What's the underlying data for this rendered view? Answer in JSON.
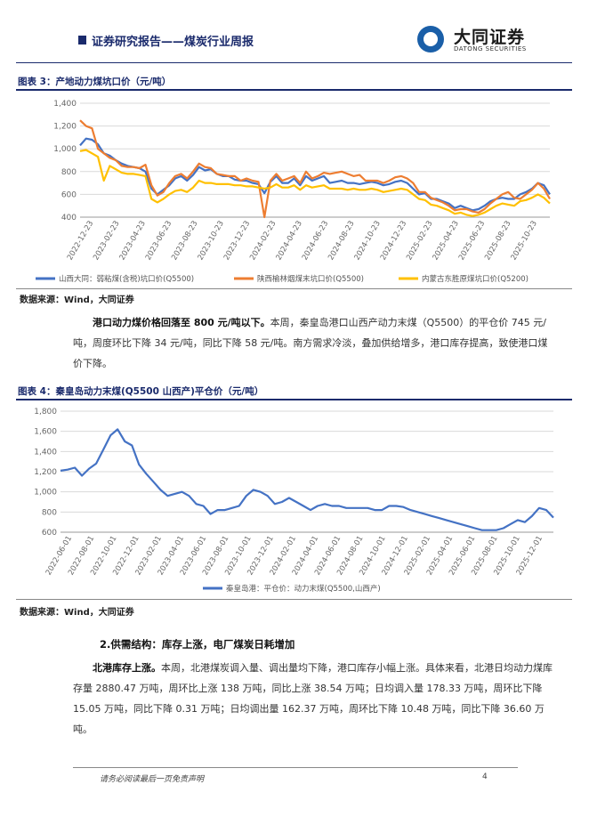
{
  "header": {
    "title": "证券研究报告——煤炭行业周报",
    "logo_cn": "大同证券",
    "logo_en": "DATONG SECURITIES"
  },
  "figure3": {
    "title": "图表 3：产地动力煤坑口价（元/吨）",
    "source": "数据来源：Wind，大同证券"
  },
  "paragraph1": {
    "lead": "港口动力煤价格回落至 800 元/吨以下。",
    "body": "本周，秦皇岛港口山西产动力末煤（Q5500）的平仓价 745 元/吨，周度环比下降 34 元/吨，同比下降 58 元/吨。南方需求冷淡，叠加供给增多，港口库存提高，致使港口煤价下降。"
  },
  "figure4": {
    "title": "图表 4：秦皇岛动力末煤(Q5500 山西产)平仓价（元/吨）",
    "source": "数据来源：Wind，大同证券"
  },
  "section2": {
    "title": "2.供需结构：库存上涨，电厂煤炭日耗增加"
  },
  "paragraph2": {
    "lead": "北港库存上涨。",
    "body": "本周，北港煤炭调入量、调出量均下降，港口库存小幅上涨。具体来看，北港日均动力煤库存量 2880.47 万吨，周环比上涨 138 万吨，同比上涨 38.54 万吨；日均调入量 178.33 万吨，周环比下降 15.05 万吨，同比下降 0.31 万吨；日均调出量 162.37 万吨，周环比下降 10.48 万吨，同比下降 36.60 万吨。"
  },
  "footer": {
    "disclaimer": "请务必阅读最后一页免责声明",
    "page": "4"
  },
  "chart_data": [
    {
      "type": "line",
      "title": "",
      "xlabel": "",
      "ylabel": "",
      "ylim": [
        400,
        1400
      ],
      "yticks": [
        400,
        600,
        800,
        1000,
        1200,
        1400
      ],
      "ytick_labels": [
        "400",
        "600",
        "800",
        "1,000",
        "1,200",
        "1,400"
      ],
      "xtick_labels": [
        "2022-12-23",
        "2023-02-23",
        "2023-04-23",
        "2023-06-23",
        "2023-08-23",
        "2023-10-23",
        "2023-12-23",
        "2024-02-23",
        "2024-04-23",
        "2024-06-23",
        "2024-08-23",
        "2024-10-23",
        "2024-12-23",
        "2025-02-23",
        "2025-04-23",
        "2025-06-23",
        "2025-08-23",
        "2025-10-23"
      ],
      "grid": "horizontal",
      "legend_position": "bottom",
      "series": [
        {
          "name": "山西大同：弱粘煤(含税)坑口价(Q5500)",
          "color": "#4472c4",
          "values": [
            1030,
            1090,
            1080,
            1040,
            960,
            940,
            900,
            870,
            850,
            840,
            830,
            800,
            650,
            600,
            640,
            680,
            740,
            760,
            720,
            770,
            840,
            810,
            820,
            780,
            760,
            760,
            730,
            720,
            720,
            700,
            690,
            610,
            710,
            760,
            700,
            700,
            740,
            680,
            760,
            720,
            740,
            760,
            700,
            710,
            720,
            700,
            700,
            690,
            700,
            710,
            700,
            680,
            690,
            710,
            720,
            700,
            650,
            600,
            610,
            560,
            560,
            540,
            520,
            480,
            500,
            480,
            460,
            470,
            500,
            540,
            560,
            570,
            560,
            560,
            600,
            620,
            650,
            700,
            680,
            600
          ]
        },
        {
          "name": "陕西榆林烟煤末坑口价(Q5500)",
          "color": "#ed7d31",
          "values": [
            1250,
            1200,
            1180,
            1000,
            960,
            920,
            900,
            850,
            840,
            840,
            830,
            860,
            680,
            590,
            620,
            700,
            760,
            780,
            740,
            800,
            870,
            840,
            830,
            780,
            770,
            760,
            760,
            720,
            740,
            720,
            710,
            400,
            720,
            780,
            720,
            740,
            760,
            700,
            800,
            740,
            760,
            790,
            780,
            790,
            800,
            780,
            760,
            770,
            720,
            720,
            720,
            700,
            720,
            750,
            760,
            740,
            700,
            620,
            620,
            570,
            550,
            530,
            500,
            460,
            470,
            470,
            450,
            440,
            470,
            520,
            560,
            600,
            620,
            570,
            560,
            600,
            640,
            700,
            650,
            560
          ]
        },
        {
          "name": "内蒙古东胜原煤坑口价(Q5200)",
          "color": "#ffc000",
          "values": [
            980,
            990,
            960,
            930,
            720,
            850,
            820,
            790,
            780,
            780,
            770,
            760,
            560,
            530,
            560,
            600,
            630,
            640,
            620,
            660,
            720,
            700,
            700,
            690,
            690,
            690,
            680,
            680,
            670,
            670,
            660,
            650,
            660,
            690,
            660,
            660,
            680,
            640,
            680,
            660,
            670,
            680,
            650,
            650,
            650,
            640,
            650,
            640,
            640,
            650,
            640,
            620,
            630,
            640,
            650,
            640,
            600,
            560,
            550,
            510,
            500,
            480,
            460,
            430,
            440,
            420,
            410,
            420,
            440,
            470,
            500,
            520,
            510,
            500,
            540,
            550,
            570,
            600,
            570,
            520
          ]
        }
      ]
    },
    {
      "type": "line",
      "title": "",
      "xlabel": "",
      "ylabel": "",
      "ylim": [
        600,
        1800
      ],
      "yticks": [
        600,
        800,
        1000,
        1200,
        1400,
        1600,
        1800
      ],
      "ytick_labels": [
        "600",
        "800",
        "1,000",
        "1,200",
        "1,400",
        "1,600",
        "1,800"
      ],
      "xtick_labels": [
        "2022-06-01",
        "2022-08-01",
        "2022-10-01",
        "2022-12-01",
        "2023-02-01",
        "2023-04-01",
        "2023-06-01",
        "2023-08-01",
        "2023-10-01",
        "2023-12-01",
        "2024-02-01",
        "2024-04-01",
        "2024-06-01",
        "2024-08-01",
        "2024-10-01",
        "2024-12-01",
        "2025-02-01",
        "2025-04-01",
        "2025-06-01",
        "2025-08-01",
        "2025-10-01",
        "2025-12-01"
      ],
      "grid": "horizontal",
      "legend_position": "bottom",
      "series": [
        {
          "name": "秦皇岛港：平仓价：动力末煤(Q5500,山西产)",
          "color": "#4472c4",
          "values": [
            1210,
            1220,
            1240,
            1160,
            1230,
            1280,
            1420,
            1560,
            1620,
            1500,
            1460,
            1270,
            1180,
            1100,
            1020,
            960,
            980,
            1000,
            960,
            880,
            860,
            780,
            820,
            820,
            840,
            860,
            960,
            1020,
            1000,
            960,
            880,
            900,
            940,
            900,
            860,
            820,
            860,
            880,
            860,
            860,
            840,
            840,
            840,
            840,
            820,
            820,
            860,
            860,
            850,
            820,
            800,
            780,
            760,
            740,
            720,
            700,
            680,
            660,
            640,
            620,
            620,
            620,
            640,
            680,
            720,
            700,
            760,
            840,
            820,
            745
          ]
        }
      ]
    }
  ]
}
